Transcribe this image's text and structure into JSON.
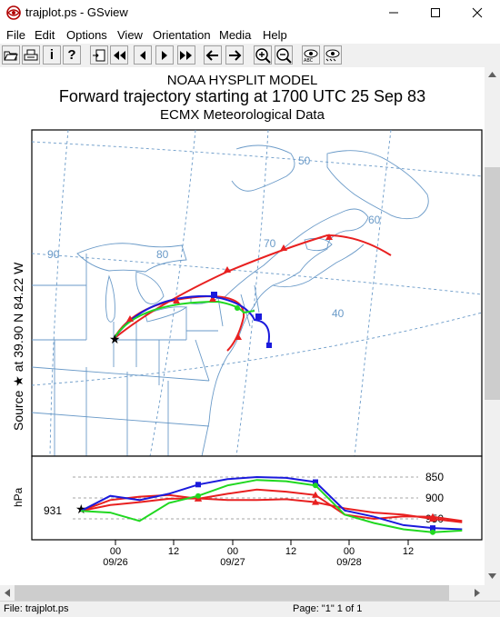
{
  "window": {
    "title": "trajplot.ps - GSview"
  },
  "menu": [
    "File",
    "Edit",
    "Options",
    "View",
    "Orientation",
    "Media",
    "Help"
  ],
  "toolbar": {
    "info_glyph": "i",
    "help_glyph": "?",
    "icons": [
      "open-icon",
      "print-icon",
      "info-icon",
      "help-icon",
      "goto-page-icon",
      "first-page-icon",
      "previous-page-icon",
      "next-page-icon",
      "last-page-icon",
      "back-icon",
      "forward-icon",
      "zoom-in-icon",
      "zoom-out-icon",
      "fullscreen-icon",
      "preview-icon"
    ]
  },
  "plot": {
    "heading": "NOAA HYSPLIT MODEL",
    "title": "Forward trajectory starting at 1700 UTC 25 Sep 83",
    "subtitle": "ECMX Meteorological Data",
    "source_label": "Source ★ at   39.90 N   84.22 W",
    "lon_labels": [
      "90",
      "80",
      "70",
      "60"
    ],
    "lat_labels": [
      "50",
      "40"
    ],
    "hpa_label": "hPa",
    "start_pressure": "931",
    "pressure_levels": [
      "850",
      "900",
      "950"
    ],
    "time_ticks": [
      "00",
      "12",
      "00",
      "12",
      "00",
      "12"
    ],
    "date_labels": [
      "09/26",
      "09/27",
      "09/28"
    ],
    "colors": {
      "red": "#e82020",
      "blue": "#1a1adc",
      "green": "#20d820",
      "map": "#6a9ac8"
    }
  },
  "chart_data": {
    "type": "line",
    "ylabel": "hPa",
    "x_hours_since_start": [
      0,
      6,
      12,
      18,
      24,
      30,
      36,
      42,
      48,
      54,
      60,
      66,
      72,
      78
    ],
    "series": [
      {
        "values": [
          931,
          905,
          897,
          893,
          902,
          890,
          880,
          885,
          893,
          940,
          950,
          944,
          945,
          955
        ]
      },
      {
        "values": [
          931,
          917,
          910,
          902,
          901,
          905,
          905,
          903,
          910,
          925,
          935,
          940,
          950,
          958
        ]
      },
      {
        "values": [
          931,
          895,
          905,
          890,
          868,
          855,
          850,
          852,
          862,
          930,
          945,
          965,
          972,
          975
        ]
      },
      {
        "values": [
          931,
          935,
          955,
          912,
          895,
          870,
          857,
          860,
          870,
          940,
          960,
          975,
          982,
          978
        ]
      }
    ]
  },
  "status": {
    "file": "File: trajplot.ps",
    "page": "Page: \"1\"  1 of 1"
  }
}
